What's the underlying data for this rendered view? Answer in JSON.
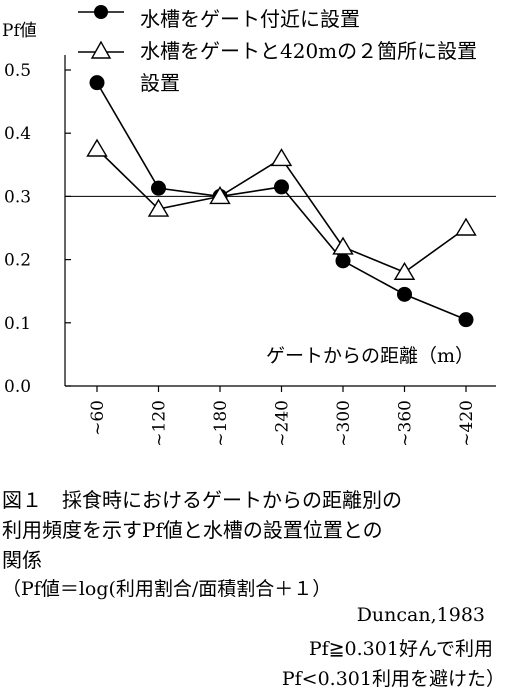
{
  "chart_data": {
    "type": "line",
    "ylabel": "Pf値",
    "xlabel": "ゲートからの距離（m）",
    "categories": [
      "~60",
      "~120",
      "~180",
      "~240",
      "~300",
      "~360",
      "~420"
    ],
    "yticks": [
      "0.0",
      "0.1",
      "0.2",
      "0.3",
      "0.4",
      "0.5"
    ],
    "ylim": [
      0,
      0.5
    ],
    "reference_line": 0.3,
    "series": [
      {
        "name": "水槽をゲート付近に設置",
        "marker": "circle",
        "values": [
          0.48,
          0.313,
          0.3,
          0.315,
          0.198,
          0.145,
          0.105
        ]
      },
      {
        "name": "水槽をゲートと420mの２箇所に設置",
        "marker": "triangle",
        "values": [
          0.375,
          0.28,
          0.3,
          0.36,
          0.22,
          0.18,
          0.25
        ]
      }
    ],
    "legend_series2_line2": "設置"
  },
  "caption": {
    "line1": "図１　採食時におけるゲートからの距離別の",
    "line2": "利用頻度を示すPf値と水槽の設置位置との",
    "line3": "関係",
    "line4": "（Pf値＝log(利用割合/面積割合＋１）",
    "line5": "Duncan,1983",
    "line6": "Pf≧0.301好んで利用",
    "line7": "Pf<0.301利用を避けた）"
  }
}
